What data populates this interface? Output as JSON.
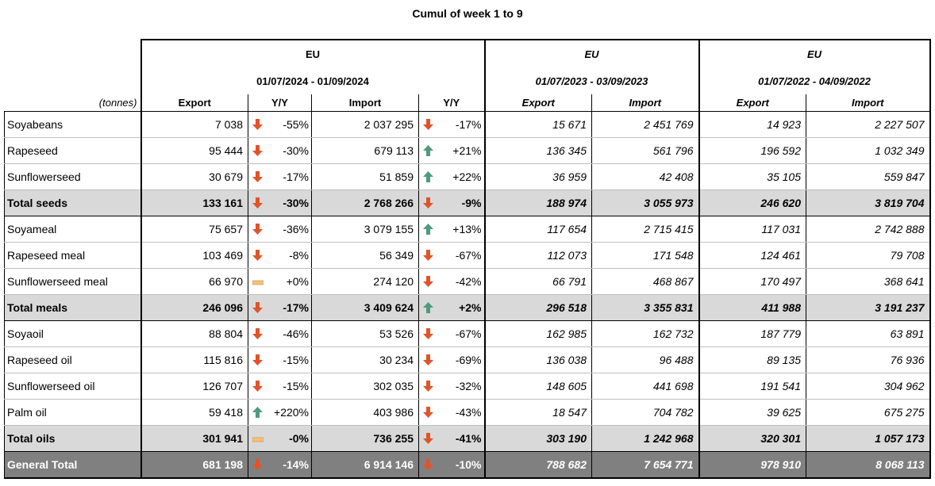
{
  "title": "Cumul of week 1 to 9",
  "unit_label": "(tonnes)",
  "groups": [
    {
      "region": "EU",
      "period": "01/07/2024 - 01/09/2024"
    },
    {
      "region": "EU",
      "period": "01/07/2023 - 03/09/2023"
    },
    {
      "region": "EU",
      "period": "01/07/2022 - 04/09/2022"
    }
  ],
  "columns": {
    "export": "Export",
    "yy": "Y/Y",
    "import": "Import",
    "yy2": "Y/Y",
    "export_2023": "Export",
    "import_2023": "Import",
    "export_2022": "Export",
    "import_2022": "Import"
  },
  "rows": [
    {
      "label": "Soyabeans",
      "type": "normal",
      "exp": "7 038",
      "exp_trend": "down",
      "exp_yy": "-55%",
      "imp": "2 037 295",
      "imp_trend": "down",
      "imp_yy": "-17%",
      "exp23": "15 671",
      "imp23": "2 451 769",
      "exp22": "14 923",
      "imp22": "2 227 507"
    },
    {
      "label": "Rapeseed",
      "type": "normal",
      "exp": "95 444",
      "exp_trend": "down",
      "exp_yy": "-30%",
      "imp": "679 113",
      "imp_trend": "up",
      "imp_yy": "+21%",
      "exp23": "136 345",
      "imp23": "561 796",
      "exp22": "196 592",
      "imp22": "1 032 349"
    },
    {
      "label": "Sunflowerseed",
      "type": "normal",
      "exp": "30 679",
      "exp_trend": "down",
      "exp_yy": "-17%",
      "imp": "51 859",
      "imp_trend": "up",
      "imp_yy": "+22%",
      "exp23": "36 959",
      "imp23": "42 408",
      "exp22": "35 105",
      "imp22": "559 847"
    },
    {
      "label": "Total seeds",
      "type": "total",
      "exp": "133 161",
      "exp_trend": "down",
      "exp_yy": "-30%",
      "imp": "2 768 266",
      "imp_trend": "down",
      "imp_yy": "-9%",
      "exp23": "188 974",
      "imp23": "3 055 973",
      "exp22": "246 620",
      "imp22": "3 819 704"
    },
    {
      "label": "Soyameal",
      "type": "normal",
      "exp": "75 657",
      "exp_trend": "down",
      "exp_yy": "-36%",
      "imp": "3 079 155",
      "imp_trend": "up",
      "imp_yy": "+13%",
      "exp23": "117 654",
      "imp23": "2 715 415",
      "exp22": "117 031",
      "imp22": "2 742 888"
    },
    {
      "label": "Rapeseed meal",
      "type": "normal",
      "exp": "103 469",
      "exp_trend": "down",
      "exp_yy": "-8%",
      "imp": "56 349",
      "imp_trend": "down",
      "imp_yy": "-67%",
      "exp23": "112 073",
      "imp23": "171 548",
      "exp22": "124 461",
      "imp22": "79 708"
    },
    {
      "label": "Sunflowerseed meal",
      "type": "normal",
      "exp": "66 970",
      "exp_trend": "flat",
      "exp_yy": "+0%",
      "imp": "274 120",
      "imp_trend": "down",
      "imp_yy": "-42%",
      "exp23": "66 791",
      "imp23": "468 867",
      "exp22": "170 497",
      "imp22": "368 641"
    },
    {
      "label": "Total meals",
      "type": "total",
      "exp": "246 096",
      "exp_trend": "down",
      "exp_yy": "-17%",
      "imp": "3 409 624",
      "imp_trend": "up",
      "imp_yy": "+2%",
      "exp23": "296 518",
      "imp23": "3 355 831",
      "exp22": "411 988",
      "imp22": "3 191 237"
    },
    {
      "label": "Soyaoil",
      "type": "normal",
      "exp": "88 804",
      "exp_trend": "down",
      "exp_yy": "-46%",
      "imp": "53 526",
      "imp_trend": "down",
      "imp_yy": "-67%",
      "exp23": "162 985",
      "imp23": "162 732",
      "exp22": "187 779",
      "imp22": "63 891"
    },
    {
      "label": "Rapeseed oil",
      "type": "normal",
      "exp": "115 816",
      "exp_trend": "down",
      "exp_yy": "-15%",
      "imp": "30 234",
      "imp_trend": "down",
      "imp_yy": "-69%",
      "exp23": "136 038",
      "imp23": "96 488",
      "exp22": "89 135",
      "imp22": "76 936"
    },
    {
      "label": "Sunflowerseed oil",
      "type": "normal",
      "exp": "126 707",
      "exp_trend": "down",
      "exp_yy": "-15%",
      "imp": "302 035",
      "imp_trend": "down",
      "imp_yy": "-32%",
      "exp23": "148 605",
      "imp23": "441 698",
      "exp22": "191 541",
      "imp22": "304 962"
    },
    {
      "label": "Palm oil",
      "type": "normal",
      "exp": "59 418",
      "exp_trend": "up",
      "exp_yy": "+220%",
      "imp": "403 986",
      "imp_trend": "down",
      "imp_yy": "-43%",
      "exp23": "18 547",
      "imp23": "704 782",
      "exp22": "39 625",
      "imp22": "675 275"
    },
    {
      "label": "Total oils",
      "type": "total",
      "exp": "301 941",
      "exp_trend": "flat",
      "exp_yy": "-0%",
      "imp": "736 255",
      "imp_trend": "down",
      "imp_yy": "-41%",
      "exp23": "303 190",
      "imp23": "1 242 968",
      "exp22": "320 301",
      "imp22": "1 057 173"
    },
    {
      "label": "General Total",
      "type": "grand",
      "exp": "681 198",
      "exp_trend": "down",
      "exp_yy": "-14%",
      "imp": "6 914 146",
      "imp_trend": "down",
      "imp_yy": "-10%",
      "exp23": "788 682",
      "imp23": "7 654 771",
      "exp22": "978 910",
      "imp22": "8 068 113"
    }
  ],
  "trend_colors": {
    "up": "#4f9a7c",
    "down": "#e0542a",
    "flat": "#f2c27a"
  }
}
